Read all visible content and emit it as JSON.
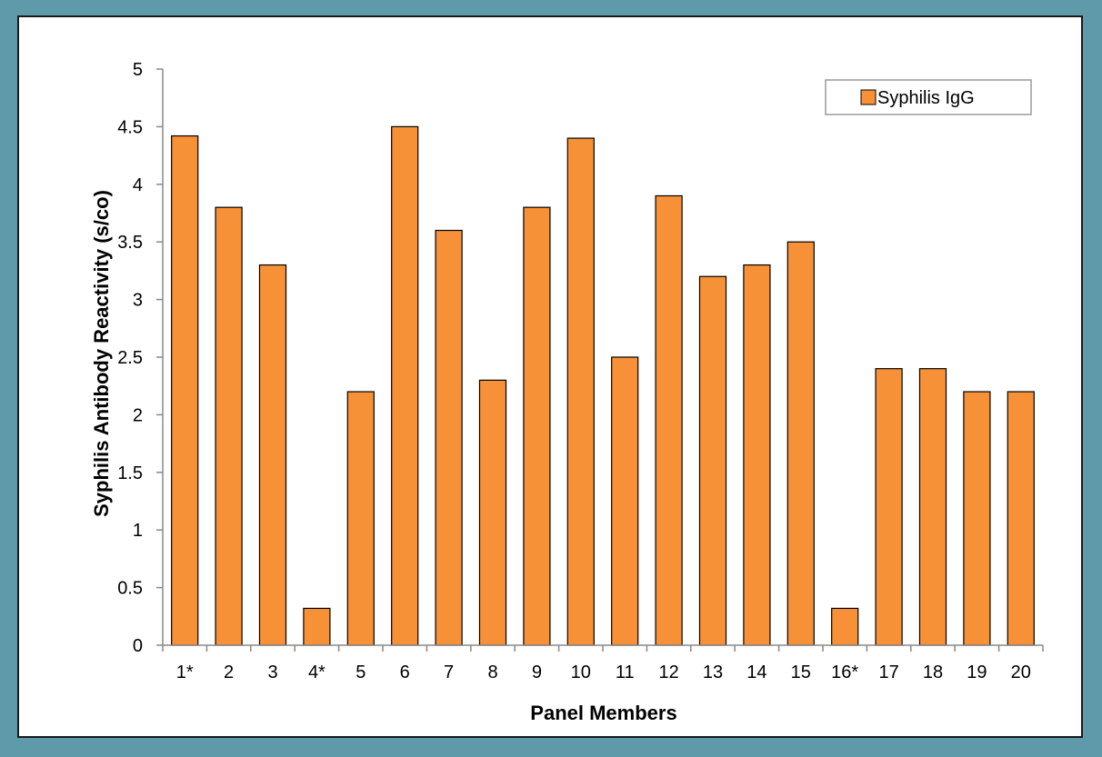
{
  "colors": {
    "background": "#5f9aab",
    "bar_fill": "#f79138",
    "bar_stroke": "#000000"
  },
  "chart_data": {
    "type": "bar",
    "categories": [
      "1*",
      "2",
      "3",
      "4*",
      "5",
      "6",
      "7",
      "8",
      "9",
      "10",
      "11",
      "12",
      "13",
      "14",
      "15",
      "16*",
      "17",
      "18",
      "19",
      "20"
    ],
    "series": [
      {
        "name": "Syphilis IgG",
        "values": [
          4.42,
          3.8,
          3.3,
          0.32,
          2.2,
          4.5,
          3.6,
          2.3,
          3.8,
          4.4,
          2.5,
          3.9,
          3.2,
          3.3,
          3.5,
          0.32,
          2.4,
          2.4,
          2.2,
          2.2
        ]
      }
    ],
    "title": "",
    "xlabel": "Panel Members",
    "ylabel": "Syphilis Antibody Reactivity (s/co)",
    "ylim": [
      0,
      5
    ],
    "yticks": [
      "0",
      "0.5",
      "1",
      "1.5",
      "2",
      "2.5",
      "3",
      "3.5",
      "4",
      "4.5",
      "5"
    ],
    "grid": false,
    "legend_position": "top-right"
  }
}
